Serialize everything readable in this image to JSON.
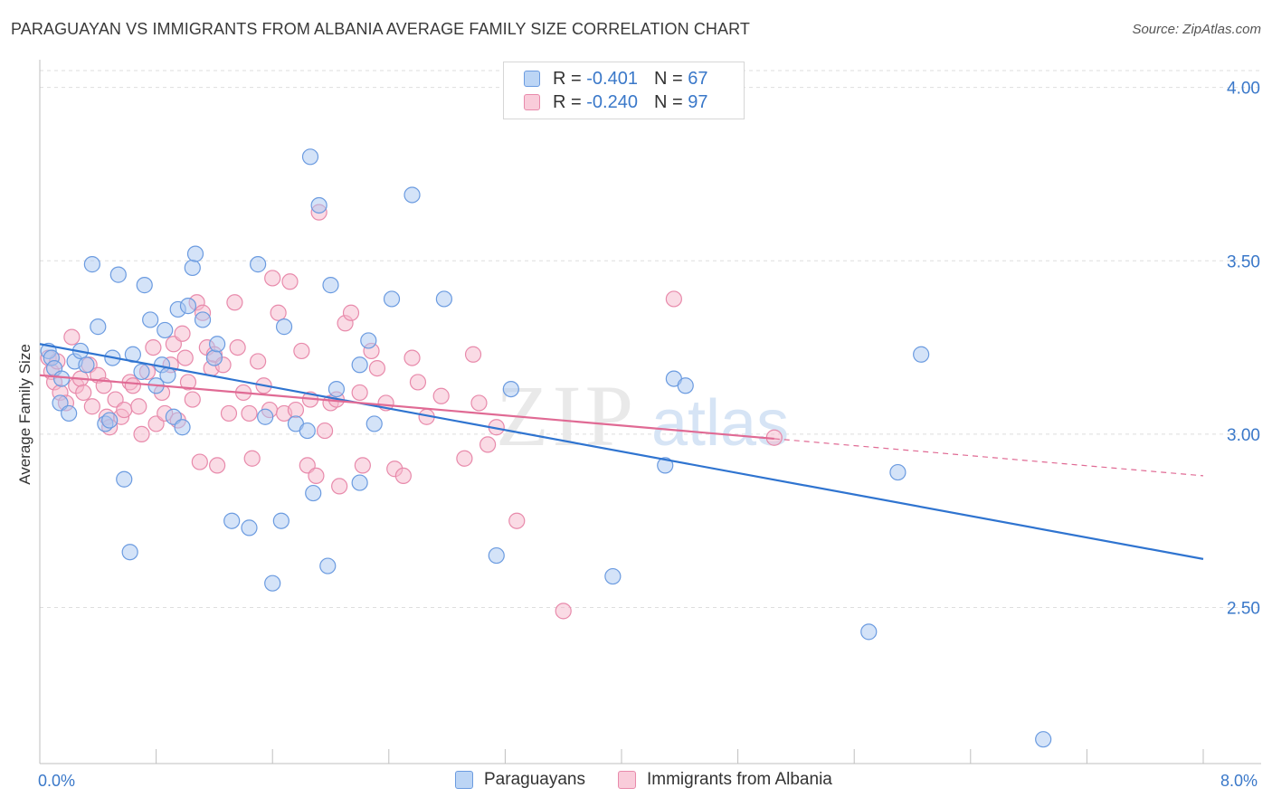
{
  "title": "PARAGUAYAN VS IMMIGRANTS FROM ALBANIA AVERAGE FAMILY SIZE CORRELATION CHART",
  "source": "Source: ZipAtlas.com",
  "watermark": {
    "zip": "ZIP",
    "atlas": "atlas"
  },
  "legend_top": [
    {
      "r_label": "R =",
      "r_value": "-0.401",
      "n_label": "N =",
      "n_value": "67"
    },
    {
      "r_label": "R =",
      "r_value": "-0.240",
      "n_label": "N =",
      "n_value": "97"
    }
  ],
  "legend_bottom": [
    {
      "label": "Paraguayans"
    },
    {
      "label": "Immigrants from Albania"
    }
  ],
  "colors": {
    "blue_fill": "#a9c8f2",
    "blue_stroke": "#6b9be0",
    "blue_line": "#2f74d0",
    "pink_fill": "#f5b8cc",
    "pink_stroke": "#e88aab",
    "pink_line": "#e06a94",
    "grid": "#dedede",
    "tick_label": "#3a78c9"
  },
  "chart_data": {
    "type": "scatter",
    "title": "PARAGUAYAN VS IMMIGRANTS FROM ALBANIA AVERAGE FAMILY SIZE CORRELATION CHART",
    "xlabel": "",
    "ylabel": "Average Family Size",
    "xlim": [
      0,
      8
    ],
    "ylim": [
      2.05,
      4.08
    ],
    "x_tick_labels": [
      "0.0%",
      "8.0%"
    ],
    "y_ticks": [
      2.5,
      3.0,
      3.5,
      4.0
    ],
    "y_tick_labels": [
      "2.50",
      "3.00",
      "3.50",
      "4.00"
    ],
    "grid": true,
    "legend_position": "top-center",
    "series": [
      {
        "name": "Paraguayans",
        "color": "#a9c8f2",
        "r": -0.401,
        "n": 67,
        "trend": {
          "x": [
            0,
            8.0
          ],
          "y": [
            3.26,
            2.64
          ],
          "dashed_from": null
        },
        "points": [
          [
            0.06,
            3.24
          ],
          [
            0.08,
            3.22
          ],
          [
            0.1,
            3.19
          ],
          [
            0.15,
            3.16
          ],
          [
            0.14,
            3.09
          ],
          [
            0.2,
            3.06
          ],
          [
            0.24,
            3.21
          ],
          [
            0.28,
            3.24
          ],
          [
            0.32,
            3.2
          ],
          [
            0.36,
            3.49
          ],
          [
            0.4,
            3.31
          ],
          [
            0.45,
            3.03
          ],
          [
            0.48,
            3.04
          ],
          [
            0.5,
            3.22
          ],
          [
            0.54,
            3.46
          ],
          [
            0.58,
            2.87
          ],
          [
            0.62,
            2.66
          ],
          [
            0.64,
            3.23
          ],
          [
            0.7,
            3.18
          ],
          [
            0.72,
            3.43
          ],
          [
            0.76,
            3.33
          ],
          [
            0.8,
            3.14
          ],
          [
            0.84,
            3.2
          ],
          [
            0.86,
            3.3
          ],
          [
            0.88,
            3.17
          ],
          [
            0.92,
            3.05
          ],
          [
            0.95,
            3.36
          ],
          [
            0.98,
            3.02
          ],
          [
            1.02,
            3.37
          ],
          [
            1.05,
            3.48
          ],
          [
            1.07,
            3.52
          ],
          [
            1.12,
            3.33
          ],
          [
            1.2,
            3.22
          ],
          [
            1.22,
            3.26
          ],
          [
            1.32,
            2.75
          ],
          [
            1.44,
            2.73
          ],
          [
            1.5,
            3.49
          ],
          [
            1.55,
            3.05
          ],
          [
            1.6,
            2.57
          ],
          [
            1.66,
            2.75
          ],
          [
            1.68,
            3.31
          ],
          [
            1.76,
            3.03
          ],
          [
            1.84,
            3.01
          ],
          [
            1.86,
            3.8
          ],
          [
            1.88,
            2.83
          ],
          [
            1.92,
            3.66
          ],
          [
            1.98,
            2.62
          ],
          [
            2.0,
            3.43
          ],
          [
            2.04,
            3.13
          ],
          [
            2.2,
            2.86
          ],
          [
            2.2,
            3.2
          ],
          [
            2.26,
            3.27
          ],
          [
            2.3,
            3.03
          ],
          [
            2.42,
            3.39
          ],
          [
            2.56,
            3.69
          ],
          [
            2.78,
            3.39
          ],
          [
            3.14,
            2.65
          ],
          [
            3.24,
            3.13
          ],
          [
            3.94,
            2.59
          ],
          [
            4.3,
            2.91
          ],
          [
            4.36,
            3.16
          ],
          [
            4.44,
            3.14
          ],
          [
            5.7,
            2.43
          ],
          [
            5.9,
            2.89
          ],
          [
            6.06,
            3.23
          ],
          [
            6.9,
            2.12
          ]
        ]
      },
      {
        "name": "Immigrants from Albania",
        "color": "#f5b8cc",
        "r": -0.24,
        "n": 97,
        "trend": {
          "x": [
            0,
            8.0
          ],
          "y": [
            3.17,
            2.88
          ],
          "dashed_from": 5.05
        },
        "points": [
          [
            0.06,
            3.22
          ],
          [
            0.08,
            3.18
          ],
          [
            0.1,
            3.15
          ],
          [
            0.12,
            3.21
          ],
          [
            0.14,
            3.12
          ],
          [
            0.18,
            3.09
          ],
          [
            0.22,
            3.28
          ],
          [
            0.25,
            3.14
          ],
          [
            0.28,
            3.16
          ],
          [
            0.3,
            3.12
          ],
          [
            0.34,
            3.2
          ],
          [
            0.36,
            3.08
          ],
          [
            0.4,
            3.17
          ],
          [
            0.44,
            3.14
          ],
          [
            0.46,
            3.05
          ],
          [
            0.48,
            3.02
          ],
          [
            0.52,
            3.1
          ],
          [
            0.56,
            3.05
          ],
          [
            0.58,
            3.07
          ],
          [
            0.62,
            3.15
          ],
          [
            0.64,
            3.14
          ],
          [
            0.68,
            3.08
          ],
          [
            0.7,
            3.0
          ],
          [
            0.74,
            3.18
          ],
          [
            0.78,
            3.25
          ],
          [
            0.8,
            3.03
          ],
          [
            0.84,
            3.12
          ],
          [
            0.86,
            3.06
          ],
          [
            0.9,
            3.2
          ],
          [
            0.92,
            3.26
          ],
          [
            0.95,
            3.04
          ],
          [
            0.98,
            3.29
          ],
          [
            1.0,
            3.22
          ],
          [
            1.02,
            3.15
          ],
          [
            1.05,
            3.1
          ],
          [
            1.08,
            3.38
          ],
          [
            1.1,
            2.92
          ],
          [
            1.12,
            3.35
          ],
          [
            1.15,
            3.25
          ],
          [
            1.18,
            3.19
          ],
          [
            1.2,
            3.23
          ],
          [
            1.22,
            2.91
          ],
          [
            1.26,
            3.2
          ],
          [
            1.3,
            3.06
          ],
          [
            1.34,
            3.38
          ],
          [
            1.36,
            3.25
          ],
          [
            1.4,
            3.12
          ],
          [
            1.44,
            3.06
          ],
          [
            1.46,
            2.93
          ],
          [
            1.5,
            3.21
          ],
          [
            1.54,
            3.14
          ],
          [
            1.58,
            3.07
          ],
          [
            1.6,
            3.45
          ],
          [
            1.64,
            3.35
          ],
          [
            1.68,
            3.06
          ],
          [
            1.72,
            3.44
          ],
          [
            1.76,
            3.07
          ],
          [
            1.8,
            3.24
          ],
          [
            1.84,
            2.91
          ],
          [
            1.86,
            3.1
          ],
          [
            1.9,
            2.88
          ],
          [
            1.92,
            3.64
          ],
          [
            1.96,
            3.01
          ],
          [
            2.0,
            3.09
          ],
          [
            2.04,
            3.1
          ],
          [
            2.06,
            2.85
          ],
          [
            2.1,
            3.32
          ],
          [
            2.14,
            3.35
          ],
          [
            2.2,
            3.12
          ],
          [
            2.22,
            2.91
          ],
          [
            2.28,
            3.24
          ],
          [
            2.32,
            3.19
          ],
          [
            2.38,
            3.09
          ],
          [
            2.44,
            2.9
          ],
          [
            2.5,
            2.88
          ],
          [
            2.56,
            3.22
          ],
          [
            2.6,
            3.15
          ],
          [
            2.66,
            3.05
          ],
          [
            2.76,
            3.11
          ],
          [
            2.92,
            2.93
          ],
          [
            2.98,
            3.23
          ],
          [
            3.02,
            3.09
          ],
          [
            3.08,
            2.97
          ],
          [
            3.14,
            3.02
          ],
          [
            3.28,
            2.75
          ],
          [
            3.6,
            2.49
          ],
          [
            4.36,
            3.39
          ],
          [
            5.05,
            2.99
          ]
        ]
      }
    ]
  }
}
